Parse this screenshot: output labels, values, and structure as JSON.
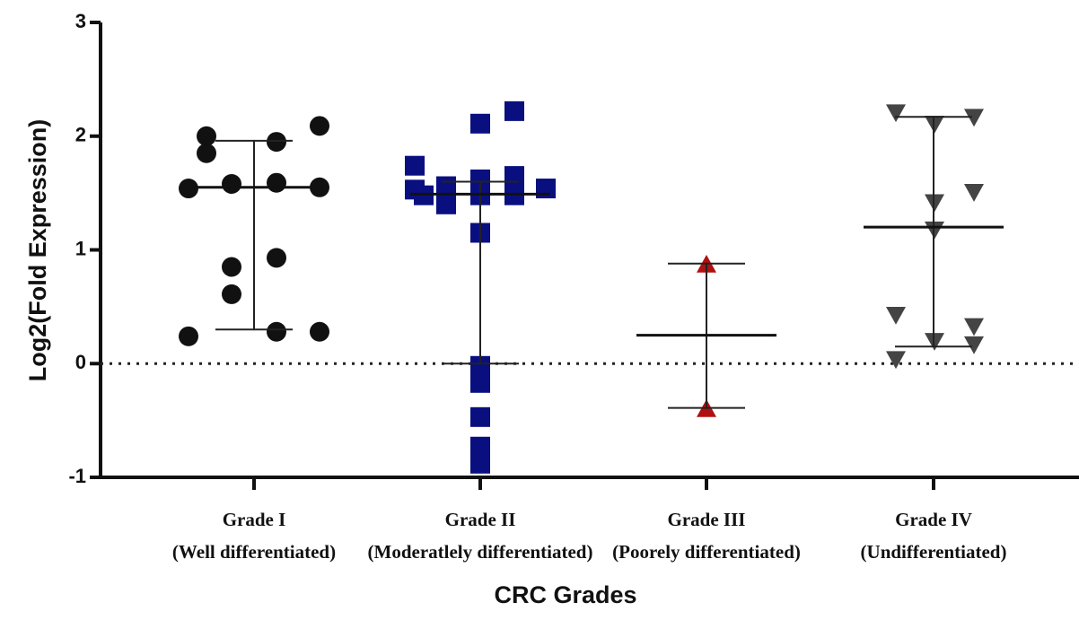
{
  "chart_data": {
    "type": "dot",
    "y_label": "Log2(Fold Expression)",
    "x_label": "CRC Grades",
    "ylim": [
      -1,
      3
    ],
    "yticks": [
      -1,
      0,
      1,
      2,
      3
    ],
    "reference_line": 0,
    "groups": [
      {
        "category": "Grade I",
        "subtitle": "(Well differentiated)",
        "marker": "circle",
        "color": "#111111",
        "values": [
          1.54,
          2.0,
          1.85,
          0.24,
          1.58,
          0.85,
          0.61,
          1.95,
          1.59,
          0.93,
          0.28,
          2.09,
          1.55,
          0.28
        ],
        "median": 1.55,
        "upper": 1.96,
        "lower": 0.3
      },
      {
        "category": "Grade II",
        "subtitle": "(Moderatlely differentiated)",
        "marker": "square",
        "color": "#0a0f80",
        "values": [
          1.74,
          1.53,
          1.48,
          1.56,
          1.4,
          2.11,
          1.62,
          1.48,
          1.15,
          -0.02,
          -0.17,
          -0.47,
          -0.73,
          -0.88,
          2.22,
          1.65,
          1.48,
          1.54
        ],
        "median": 1.49,
        "upper": 1.6,
        "lower": 0.0
      },
      {
        "category": "Grade III",
        "subtitle": "(Poorely differentiated)",
        "marker": "triangle-up",
        "color": "#b01010",
        "values": [
          0.87,
          -0.4
        ],
        "median": 0.25,
        "upper": 0.88,
        "lower": -0.39
      },
      {
        "category": "Grade IV",
        "subtitle": "(Undifferentiated)",
        "marker": "triangle-down",
        "color": "#444444",
        "values": [
          2.21,
          0.43,
          0.04,
          2.11,
          1.42,
          1.18,
          0.2,
          2.17,
          1.51,
          0.33,
          0.17
        ],
        "median": 1.2,
        "upper": 2.17,
        "lower": 0.15
      }
    ]
  }
}
